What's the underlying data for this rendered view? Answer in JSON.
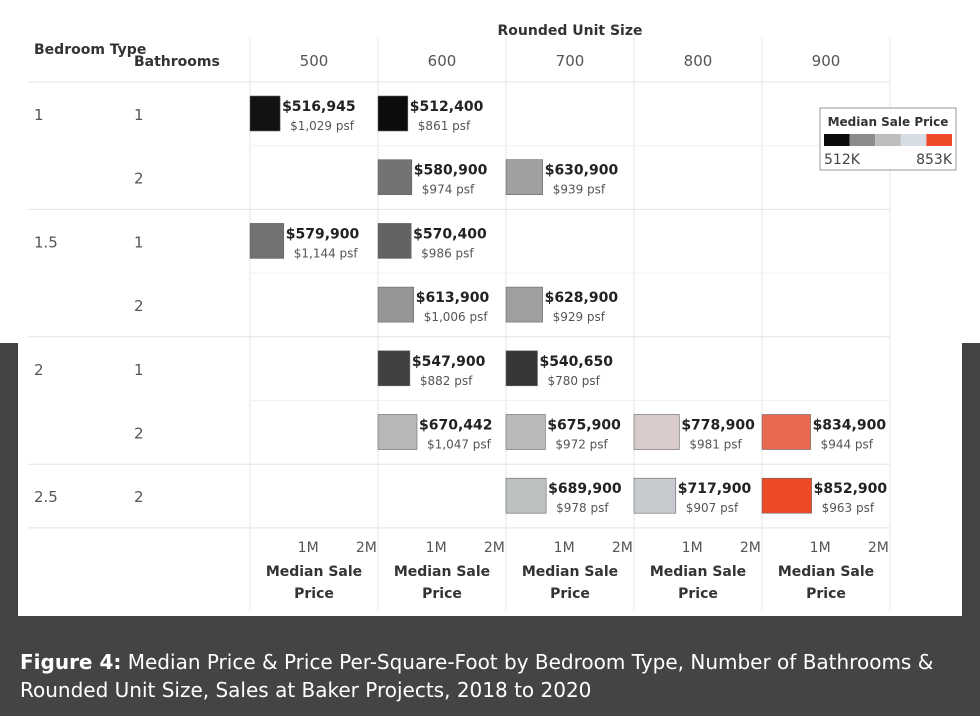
{
  "chart_data": {
    "type": "bar",
    "title": "Rounded Unit Size",
    "row_header_1": "Bedroom Type",
    "row_header_2": "Bathrooms",
    "columns": [
      "500",
      "600",
      "700",
      "800",
      "900"
    ],
    "rows": [
      {
        "bedroom": "1",
        "bathrooms": "1"
      },
      {
        "bedroom": "",
        "bathrooms": "2"
      },
      {
        "bedroom": "1.5",
        "bathrooms": "1"
      },
      {
        "bedroom": "",
        "bathrooms": "2"
      },
      {
        "bedroom": "2",
        "bathrooms": "1"
      },
      {
        "bedroom": "",
        "bathrooms": "2"
      },
      {
        "bedroom": "2.5",
        "bathrooms": "2"
      }
    ],
    "cells": [
      {
        "row": 0,
        "col": 0,
        "value": 516945,
        "price_label": "$516,945",
        "psf_label": "$1,029 psf"
      },
      {
        "row": 0,
        "col": 1,
        "value": 512400,
        "price_label": "$512,400",
        "psf_label": "$861 psf"
      },
      {
        "row": 1,
        "col": 1,
        "value": 580900,
        "price_label": "$580,900",
        "psf_label": "$974 psf"
      },
      {
        "row": 1,
        "col": 2,
        "value": 630900,
        "price_label": "$630,900",
        "psf_label": "$939 psf"
      },
      {
        "row": 2,
        "col": 0,
        "value": 579900,
        "price_label": "$579,900",
        "psf_label": "$1,144 psf"
      },
      {
        "row": 2,
        "col": 1,
        "value": 570400,
        "price_label": "$570,400",
        "psf_label": "$986 psf"
      },
      {
        "row": 3,
        "col": 1,
        "value": 613900,
        "price_label": "$613,900",
        "psf_label": "$1,006 psf"
      },
      {
        "row": 3,
        "col": 2,
        "value": 628900,
        "price_label": "$628,900",
        "psf_label": "$929 psf"
      },
      {
        "row": 4,
        "col": 1,
        "value": 547900,
        "price_label": "$547,900",
        "psf_label": "$882 psf"
      },
      {
        "row": 4,
        "col": 2,
        "value": 540650,
        "price_label": "$540,650",
        "psf_label": "$780 psf"
      },
      {
        "row": 5,
        "col": 1,
        "value": 670442,
        "price_label": "$670,442",
        "psf_label": "$1,047 psf"
      },
      {
        "row": 5,
        "col": 2,
        "value": 675900,
        "price_label": "$675,900",
        "psf_label": "$972 psf"
      },
      {
        "row": 5,
        "col": 3,
        "value": 778900,
        "price_label": "$778,900",
        "psf_label": "$981 psf"
      },
      {
        "row": 5,
        "col": 4,
        "value": 834900,
        "price_label": "$834,900",
        "psf_label": "$944 psf"
      },
      {
        "row": 6,
        "col": 2,
        "value": 689900,
        "price_label": "$689,900",
        "psf_label": "$978 psf"
      },
      {
        "row": 6,
        "col": 3,
        "value": 717900,
        "price_label": "$717,900",
        "psf_label": "$907 psf"
      },
      {
        "row": 6,
        "col": 4,
        "value": 852900,
        "price_label": "$852,900",
        "psf_label": "$963 psf"
      }
    ],
    "x_axis": {
      "ticks": [
        "1M",
        "2M"
      ],
      "tick_values": [
        1000000,
        2000000
      ],
      "range": [
        0,
        2200000
      ],
      "label_line1": "Median Sale",
      "label_line2": "Price"
    },
    "legend": {
      "title": "Median Sale Price",
      "min_label": "512K",
      "max_label": "853K",
      "min": 512000,
      "max": 853000,
      "placement": "top-right"
    },
    "color_scale": [
      "#0b0b0b",
      "#8c8c8e",
      "#bcbebf",
      "#d6dde5",
      "#ee4a27"
    ]
  },
  "caption": {
    "label": "Figure 4:",
    "text": "Median Price & Price Per-Square-Foot by Bedroom Type, Number of Bathrooms & Rounded Unit Size, Sales at Baker Projects, 2018 to 2020"
  }
}
